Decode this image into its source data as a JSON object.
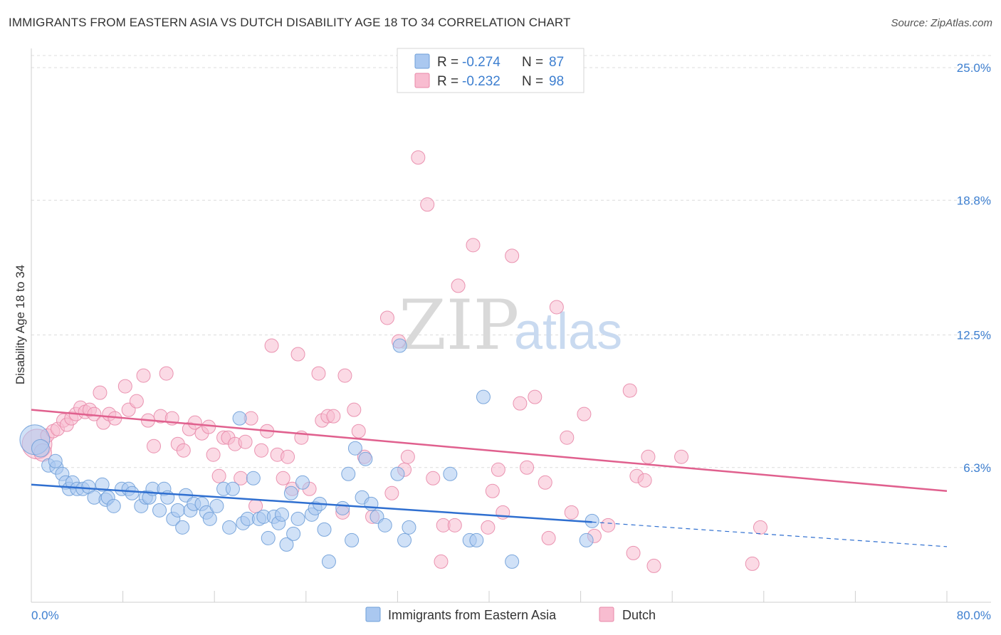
{
  "title": "IMMIGRANTS FROM EASTERN ASIA VS DUTCH DISABILITY AGE 18 TO 34 CORRELATION CHART",
  "source": "Source: ZipAtlas.com",
  "watermark": {
    "zip": "ZIP",
    "atlas": "atlas"
  },
  "legend": {
    "rows": [
      {
        "r_label": "R = ",
        "r_value": "-0.274",
        "n_label": "N = ",
        "n_value": "87",
        "color": "#aac8f0",
        "stroke": "#6f9fd8"
      },
      {
        "r_label": "R = ",
        "r_value": "-0.232",
        "n_label": "N = ",
        "n_value": "98",
        "color": "#f8bcd0",
        "stroke": "#e888a8"
      }
    ]
  },
  "bottom_legend": [
    {
      "label": "Immigrants from Eastern Asia",
      "color": "#aac8f0",
      "stroke": "#6f9fd8"
    },
    {
      "label": "Dutch",
      "color": "#f8bcd0",
      "stroke": "#e888a8"
    }
  ],
  "chart_data": {
    "type": "scatter",
    "title": "IMMIGRANTS FROM EASTERN ASIA VS DUTCH DISABILITY AGE 18 TO 34 CORRELATION CHART",
    "xlabel": "",
    "ylabel": "Disability Age 18 to 34",
    "xlim": [
      0,
      80
    ],
    "ylim": [
      0,
      25.9
    ],
    "x_tick_labels": [
      "0.0%",
      "80.0%"
    ],
    "y_ticks": [
      6.3,
      12.5,
      18.8,
      25.0
    ],
    "y_tick_labels": [
      "6.3%",
      "12.5%",
      "18.8%",
      "25.0%"
    ],
    "grid": true,
    "series": [
      {
        "name": "Immigrants from Eastern Asia",
        "color": "#aac8f0",
        "trend": {
          "x0": 0,
          "y0": 5.5,
          "x1": 49,
          "y1": 3.75,
          "dash_x1": 80,
          "dash_y1": 2.6
        },
        "points": [
          [
            0.3,
            7.6,
            2.2
          ],
          [
            0.8,
            7.2,
            1.3
          ],
          [
            1.5,
            6.4,
            1
          ],
          [
            2.2,
            6.3,
            1
          ],
          [
            2.1,
            6.6,
            1
          ],
          [
            2.7,
            6.0,
            1
          ],
          [
            3.0,
            5.6,
            1
          ],
          [
            3.3,
            5.3,
            1
          ],
          [
            3.6,
            5.6,
            1
          ],
          [
            4.0,
            5.3,
            1
          ],
          [
            4.5,
            5.3,
            1
          ],
          [
            5.0,
            5.4,
            1
          ],
          [
            5.5,
            4.9,
            1
          ],
          [
            6.2,
            5.5,
            1
          ],
          [
            6.5,
            4.8,
            1
          ],
          [
            6.7,
            4.9,
            1
          ],
          [
            7.2,
            4.5,
            1
          ],
          [
            7.9,
            5.3,
            1
          ],
          [
            8.5,
            5.3,
            1
          ],
          [
            8.8,
            5.1,
            1
          ],
          [
            9.6,
            4.5,
            1
          ],
          [
            10.0,
            4.9,
            1
          ],
          [
            10.3,
            4.9,
            1
          ],
          [
            10.6,
            5.3,
            1
          ],
          [
            11.2,
            4.3,
            1
          ],
          [
            11.6,
            5.3,
            1
          ],
          [
            11.9,
            4.9,
            1
          ],
          [
            12.4,
            3.9,
            1
          ],
          [
            12.8,
            4.3,
            1
          ],
          [
            13.2,
            3.5,
            1
          ],
          [
            13.5,
            5.0,
            1
          ],
          [
            13.9,
            4.3,
            1
          ],
          [
            14.2,
            4.6,
            1
          ],
          [
            14.9,
            4.6,
            1
          ],
          [
            15.3,
            4.2,
            1
          ],
          [
            15.6,
            3.9,
            1
          ],
          [
            16.2,
            4.5,
            1
          ],
          [
            16.8,
            5.3,
            1
          ],
          [
            17.3,
            3.5,
            1
          ],
          [
            17.6,
            5.3,
            1
          ],
          [
            18.2,
            8.6,
            1
          ],
          [
            18.5,
            3.7,
            1
          ],
          [
            18.9,
            3.9,
            1
          ],
          [
            19.4,
            5.8,
            1
          ],
          [
            19.9,
            3.9,
            1
          ],
          [
            20.3,
            4.0,
            1
          ],
          [
            20.7,
            3.0,
            1
          ],
          [
            21.2,
            4.0,
            1
          ],
          [
            21.6,
            3.7,
            1
          ],
          [
            21.9,
            4.1,
            1
          ],
          [
            22.3,
            2.7,
            1
          ],
          [
            22.7,
            5.1,
            1
          ],
          [
            22.9,
            3.2,
            1
          ],
          [
            23.3,
            3.9,
            1
          ],
          [
            23.7,
            5.6,
            1
          ],
          [
            24.5,
            4.1,
            1
          ],
          [
            24.8,
            4.4,
            1
          ],
          [
            25.2,
            4.6,
            1
          ],
          [
            25.6,
            3.4,
            1
          ],
          [
            26.0,
            1.9,
            1
          ],
          [
            27.2,
            4.4,
            1
          ],
          [
            27.7,
            6.0,
            1
          ],
          [
            28.0,
            2.9,
            1
          ],
          [
            28.3,
            7.2,
            1
          ],
          [
            28.9,
            4.9,
            1
          ],
          [
            29.2,
            6.7,
            1
          ],
          [
            29.7,
            4.6,
            1
          ],
          [
            30.2,
            4.0,
            1
          ],
          [
            30.9,
            3.6,
            1
          ],
          [
            32.0,
            6.0,
            1
          ],
          [
            32.2,
            12.0,
            1
          ],
          [
            32.6,
            2.9,
            1
          ],
          [
            33.0,
            3.5,
            1
          ],
          [
            36.6,
            6.0,
            1
          ],
          [
            38.3,
            2.9,
            1
          ],
          [
            38.9,
            2.9,
            1
          ],
          [
            39.5,
            9.6,
            1
          ],
          [
            42.0,
            1.9,
            1
          ],
          [
            48.5,
            2.9,
            1
          ],
          [
            49.0,
            3.8,
            1
          ]
        ]
      },
      {
        "name": "Dutch",
        "color": "#f8bcd0",
        "trend": {
          "x0": 0,
          "y0": 9.0,
          "x1": 80,
          "y1": 5.2
        },
        "points": [
          [
            0.5,
            7.4,
            2.2
          ],
          [
            1.0,
            7.0,
            1.3
          ],
          [
            1.4,
            7.8,
            1
          ],
          [
            1.9,
            8.0,
            1
          ],
          [
            2.3,
            8.1,
            1
          ],
          [
            2.8,
            8.5,
            1
          ],
          [
            3.1,
            8.3,
            1
          ],
          [
            3.5,
            8.6,
            1
          ],
          [
            3.9,
            8.8,
            1
          ],
          [
            4.3,
            9.1,
            1
          ],
          [
            4.7,
            8.9,
            1
          ],
          [
            5.1,
            9.0,
            1
          ],
          [
            5.5,
            8.8,
            1
          ],
          [
            6.0,
            9.8,
            1
          ],
          [
            6.3,
            8.4,
            1
          ],
          [
            6.8,
            8.8,
            1
          ],
          [
            7.3,
            8.6,
            1
          ],
          [
            8.2,
            10.1,
            1
          ],
          [
            8.5,
            9.0,
            1
          ],
          [
            9.2,
            9.4,
            1
          ],
          [
            9.8,
            10.6,
            1
          ],
          [
            10.2,
            8.5,
            1
          ],
          [
            10.7,
            7.3,
            1
          ],
          [
            11.3,
            8.7,
            1
          ],
          [
            11.8,
            10.7,
            1
          ],
          [
            12.3,
            8.6,
            1
          ],
          [
            12.8,
            7.4,
            1
          ],
          [
            13.3,
            7.1,
            1
          ],
          [
            13.8,
            8.1,
            1
          ],
          [
            14.3,
            8.4,
            1
          ],
          [
            14.9,
            7.9,
            1
          ],
          [
            15.5,
            8.2,
            1
          ],
          [
            15.9,
            6.9,
            1
          ],
          [
            16.4,
            5.9,
            1
          ],
          [
            16.8,
            7.7,
            1
          ],
          [
            17.2,
            7.7,
            1
          ],
          [
            17.8,
            7.4,
            1
          ],
          [
            18.3,
            5.8,
            1
          ],
          [
            18.7,
            7.5,
            1
          ],
          [
            19.2,
            8.6,
            1
          ],
          [
            19.6,
            4.5,
            1
          ],
          [
            20.1,
            7.1,
            1
          ],
          [
            20.6,
            8.0,
            1
          ],
          [
            21.0,
            12.0,
            1
          ],
          [
            21.5,
            6.9,
            1
          ],
          [
            22.0,
            5.8,
            1
          ],
          [
            22.4,
            6.8,
            1
          ],
          [
            22.8,
            5.3,
            1
          ],
          [
            23.3,
            11.6,
            1
          ],
          [
            23.6,
            7.7,
            1
          ],
          [
            24.3,
            5.3,
            1
          ],
          [
            25.1,
            10.7,
            1
          ],
          [
            25.4,
            8.5,
            1
          ],
          [
            25.9,
            8.7,
            1
          ],
          [
            26.4,
            8.7,
            1
          ],
          [
            27.2,
            4.2,
            1
          ],
          [
            27.4,
            10.6,
            1
          ],
          [
            28.2,
            9.0,
            1
          ],
          [
            28.6,
            8.0,
            1
          ],
          [
            29.1,
            6.8,
            1
          ],
          [
            29.8,
            4.0,
            1
          ],
          [
            31.1,
            13.3,
            1
          ],
          [
            31.5,
            5.1,
            1
          ],
          [
            32.1,
            12.2,
            1
          ],
          [
            32.6,
            6.2,
            1
          ],
          [
            32.9,
            6.8,
            1
          ],
          [
            33.8,
            20.8,
            1
          ],
          [
            34.6,
            18.6,
            1
          ],
          [
            35.1,
            5.8,
            1
          ],
          [
            35.8,
            1.9,
            1
          ],
          [
            36.0,
            3.6,
            1
          ],
          [
            37.0,
            3.6,
            1
          ],
          [
            37.3,
            14.8,
            1
          ],
          [
            38.6,
            16.7,
            1
          ],
          [
            39.9,
            3.5,
            1
          ],
          [
            40.3,
            5.2,
            1
          ],
          [
            40.8,
            6.2,
            1
          ],
          [
            41.2,
            4.2,
            1
          ],
          [
            42.0,
            16.2,
            1
          ],
          [
            42.7,
            9.3,
            1
          ],
          [
            43.3,
            6.3,
            1
          ],
          [
            44.0,
            9.6,
            1
          ],
          [
            44.9,
            5.6,
            1
          ],
          [
            45.2,
            3.0,
            1
          ],
          [
            45.9,
            13.8,
            1
          ],
          [
            46.8,
            7.7,
            1
          ],
          [
            47.2,
            4.2,
            1
          ],
          [
            48.3,
            8.8,
            1
          ],
          [
            49.2,
            3.1,
            1
          ],
          [
            50.4,
            3.6,
            1
          ],
          [
            52.3,
            9.9,
            1
          ],
          [
            52.6,
            2.3,
            1
          ],
          [
            52.9,
            5.9,
            1
          ],
          [
            53.6,
            5.7,
            1
          ],
          [
            53.9,
            6.8,
            1
          ],
          [
            54.4,
            1.7,
            1
          ],
          [
            56.8,
            6.8,
            1
          ],
          [
            63.0,
            1.8,
            1
          ],
          [
            63.7,
            3.5,
            1
          ]
        ]
      }
    ]
  }
}
